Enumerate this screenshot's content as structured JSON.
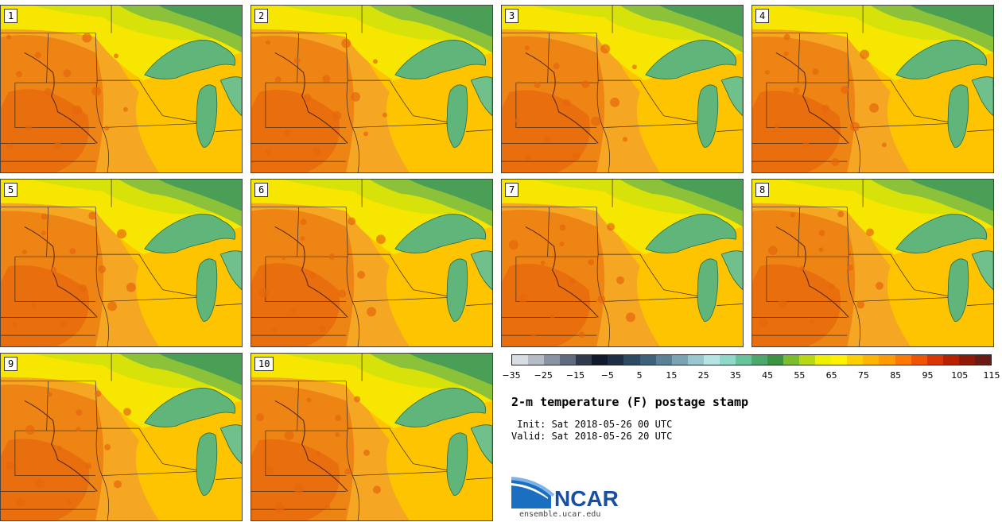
{
  "panels": [
    {
      "label": "1"
    },
    {
      "label": "2"
    },
    {
      "label": "3"
    },
    {
      "label": "4"
    },
    {
      "label": "5"
    },
    {
      "label": "6"
    },
    {
      "label": "7"
    },
    {
      "label": "8"
    },
    {
      "label": "9"
    },
    {
      "label": "10"
    }
  ],
  "colorbar": {
    "colors": [
      "#d8dde3",
      "#b6bcc6",
      "#8a93a3",
      "#5f6a7d",
      "#2f3a4d",
      "#111a2b",
      "#1e2f45",
      "#2e4a62",
      "#3f627b",
      "#5a8196",
      "#7aa4b4",
      "#9ac6cf",
      "#b5e4e2",
      "#8fd9c8",
      "#67c49a",
      "#4aa96b",
      "#3c9443",
      "#7cbd2e",
      "#b9d814",
      "#eef000",
      "#fff200",
      "#ffd000",
      "#ffb400",
      "#ff9a00",
      "#ff7800",
      "#f05400",
      "#d83500",
      "#b82000",
      "#8f1808",
      "#6a1a10"
    ],
    "tick_labels": [
      "−35",
      "−25",
      "−15",
      "−5",
      "5",
      "15",
      "25",
      "35",
      "45",
      "55",
      "65",
      "75",
      "85",
      "95",
      "105",
      "115"
    ]
  },
  "title": "2-m temperature (F) postage stamp",
  "init": " Init: Sat 2018-05-26 00 UTC",
  "valid": "Valid: Sat 2018-05-26 20 UTC",
  "logo": {
    "text": "NCAR",
    "url": "ensemble.ucar.edu"
  }
}
